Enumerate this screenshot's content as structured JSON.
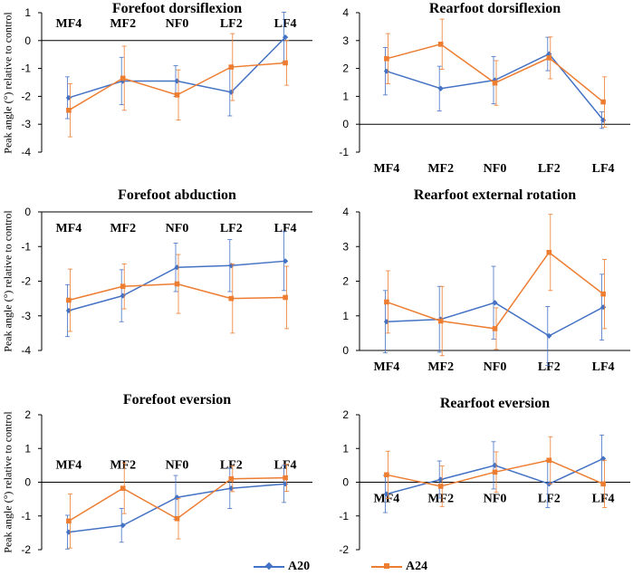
{
  "colors": {
    "A20": "#4472C4",
    "A24": "#ED7D31",
    "axis": "#000000"
  },
  "y_axis_label": "Peak angle (°) relative to control",
  "legend": [
    {
      "name": "A20",
      "color": "#4472C4",
      "marker": "diamond"
    },
    {
      "name": "A24",
      "color": "#ED7D31",
      "marker": "square"
    }
  ],
  "chart_data": [
    {
      "type": "line",
      "title": "Forefoot dorsiflexion",
      "categories": [
        "MF4",
        "MF2",
        "NF0",
        "LF2",
        "LF4"
      ],
      "ylim": [
        -4,
        1
      ],
      "yticks": [
        -4,
        -3,
        -2,
        -1,
        0,
        1
      ],
      "ylabel": "Peak angle (°) relative to control",
      "series": [
        {
          "name": "A20",
          "values": [
            -2.05,
            -1.45,
            -1.45,
            -1.85,
            0.12
          ],
          "errors": [
            0.75,
            0.85,
            0.55,
            0.85,
            0.9
          ]
        },
        {
          "name": "A24",
          "values": [
            -2.5,
            -1.35,
            -1.95,
            -0.95,
            -0.8
          ],
          "errors": [
            0.95,
            1.15,
            0.9,
            1.2,
            0.8
          ]
        }
      ]
    },
    {
      "type": "line",
      "title": "Rearfoot dorsiflexion",
      "categories": [
        "MF4",
        "MF2",
        "NF0",
        "LF2",
        "LF4"
      ],
      "ylim": [
        -1,
        4
      ],
      "yticks": [
        -1,
        0,
        1,
        2,
        3,
        4
      ],
      "ylabel": "",
      "series": [
        {
          "name": "A20",
          "values": [
            1.9,
            1.28,
            1.58,
            2.52,
            0.15
          ],
          "errors": [
            0.85,
            0.8,
            0.85,
            0.6,
            0.3
          ]
        },
        {
          "name": "A24",
          "values": [
            2.35,
            2.87,
            1.48,
            2.38,
            0.8
          ],
          "errors": [
            0.9,
            0.9,
            0.8,
            0.75,
            0.9
          ]
        }
      ]
    },
    {
      "type": "line",
      "title": "Forefoot abduction",
      "categories": [
        "MF4",
        "MF2",
        "NF0",
        "LF2",
        "LF4"
      ],
      "ylim": [
        -4,
        0
      ],
      "yticks": [
        -4,
        -3,
        -2,
        -1,
        0
      ],
      "ylabel": "Peak angle (°) relative to control",
      "series": [
        {
          "name": "A20",
          "values": [
            -2.85,
            -2.42,
            -1.6,
            -1.55,
            -1.42
          ],
          "errors": [
            0.75,
            0.75,
            0.7,
            0.75,
            0.85
          ]
        },
        {
          "name": "A24",
          "values": [
            -2.55,
            -2.15,
            -2.08,
            -2.5,
            -2.47
          ],
          "errors": [
            0.9,
            0.65,
            0.85,
            1.0,
            0.9
          ]
        }
      ]
    },
    {
      "type": "line",
      "title": "Rearfoot external rotation",
      "categories": [
        "MF4",
        "MF2",
        "NF0",
        "LF2",
        "LF4"
      ],
      "ylim": [
        0,
        4
      ],
      "yticks": [
        0,
        1,
        2,
        3,
        4
      ],
      "ylabel": "",
      "series": [
        {
          "name": "A20",
          "values": [
            0.83,
            0.9,
            1.38,
            0.42,
            1.25
          ],
          "errors": [
            0.9,
            0.95,
            1.05,
            0.85,
            0.95
          ]
        },
        {
          "name": "A24",
          "values": [
            1.4,
            0.85,
            0.63,
            2.83,
            1.63
          ],
          "errors": [
            0.9,
            1.0,
            0.6,
            1.1,
            1.0
          ]
        }
      ]
    },
    {
      "type": "line",
      "title": "Forefoot eversion",
      "categories": [
        "MF4",
        "MF2",
        "NF0",
        "LF2",
        "LF4"
      ],
      "ylim": [
        -2,
        2
      ],
      "yticks": [
        -2,
        -1,
        0,
        1,
        2
      ],
      "ylabel": "Peak angle (°) relative to control",
      "series": [
        {
          "name": "A20",
          "values": [
            -1.48,
            -1.28,
            -0.45,
            -0.18,
            -0.05
          ],
          "errors": [
            0.5,
            0.5,
            0.65,
            0.6,
            0.55
          ]
        },
        {
          "name": "A24",
          "values": [
            -1.15,
            -0.18,
            -1.08,
            0.1,
            0.13
          ],
          "errors": [
            0.8,
            0.75,
            0.6,
            0.38,
            0.4
          ]
        }
      ]
    },
    {
      "type": "line",
      "title": "Rearfoot eversion",
      "categories": [
        "MF4",
        "MF2",
        "NF0",
        "LF2",
        "LF4"
      ],
      "ylim": [
        -2,
        2
      ],
      "yticks": [
        -2,
        -1,
        0,
        1,
        2
      ],
      "ylabel": "",
      "series": [
        {
          "name": "A20",
          "values": [
            -0.35,
            0.08,
            0.5,
            -0.05,
            0.7
          ],
          "errors": [
            0.55,
            0.55,
            0.7,
            0.7,
            0.7
          ]
        },
        {
          "name": "A24",
          "values": [
            0.22,
            -0.12,
            0.3,
            0.65,
            -0.05
          ],
          "errors": [
            0.7,
            0.6,
            0.6,
            0.7,
            0.7
          ]
        }
      ]
    }
  ]
}
